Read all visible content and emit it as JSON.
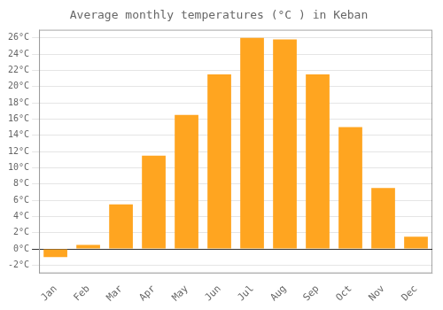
{
  "chart_data": {
    "type": "bar",
    "title": "Average monthly temperatures (°C ) in Keban",
    "categories": [
      "Jan",
      "Feb",
      "Mar",
      "Apr",
      "May",
      "Jun",
      "Jul",
      "Aug",
      "Sep",
      "Oct",
      "Nov",
      "Dec"
    ],
    "values": [
      -1.0,
      0.5,
      5.5,
      11.5,
      16.5,
      21.5,
      26.0,
      25.8,
      21.5,
      15.0,
      7.5,
      1.5
    ],
    "color": "#FFA520",
    "ylim": [
      -3,
      27
    ],
    "yticks": [
      {
        "value": -2,
        "label": "-2°C"
      },
      {
        "value": 0,
        "label": "0°C"
      },
      {
        "value": 2,
        "label": "2°C"
      },
      {
        "value": 4,
        "label": "4°C"
      },
      {
        "value": 6,
        "label": "6°C"
      },
      {
        "value": 8,
        "label": "8°C"
      },
      {
        "value": 10,
        "label": "10°C"
      },
      {
        "value": 12,
        "label": "12°C"
      },
      {
        "value": 14,
        "label": "14°C"
      },
      {
        "value": 16,
        "label": "16°C"
      },
      {
        "value": 18,
        "label": "18°C"
      },
      {
        "value": 20,
        "label": "20°C"
      },
      {
        "value": 22,
        "label": "22°C"
      },
      {
        "value": 24,
        "label": "24°C"
      },
      {
        "value": 26,
        "label": "26°C"
      }
    ],
    "grid": true
  }
}
